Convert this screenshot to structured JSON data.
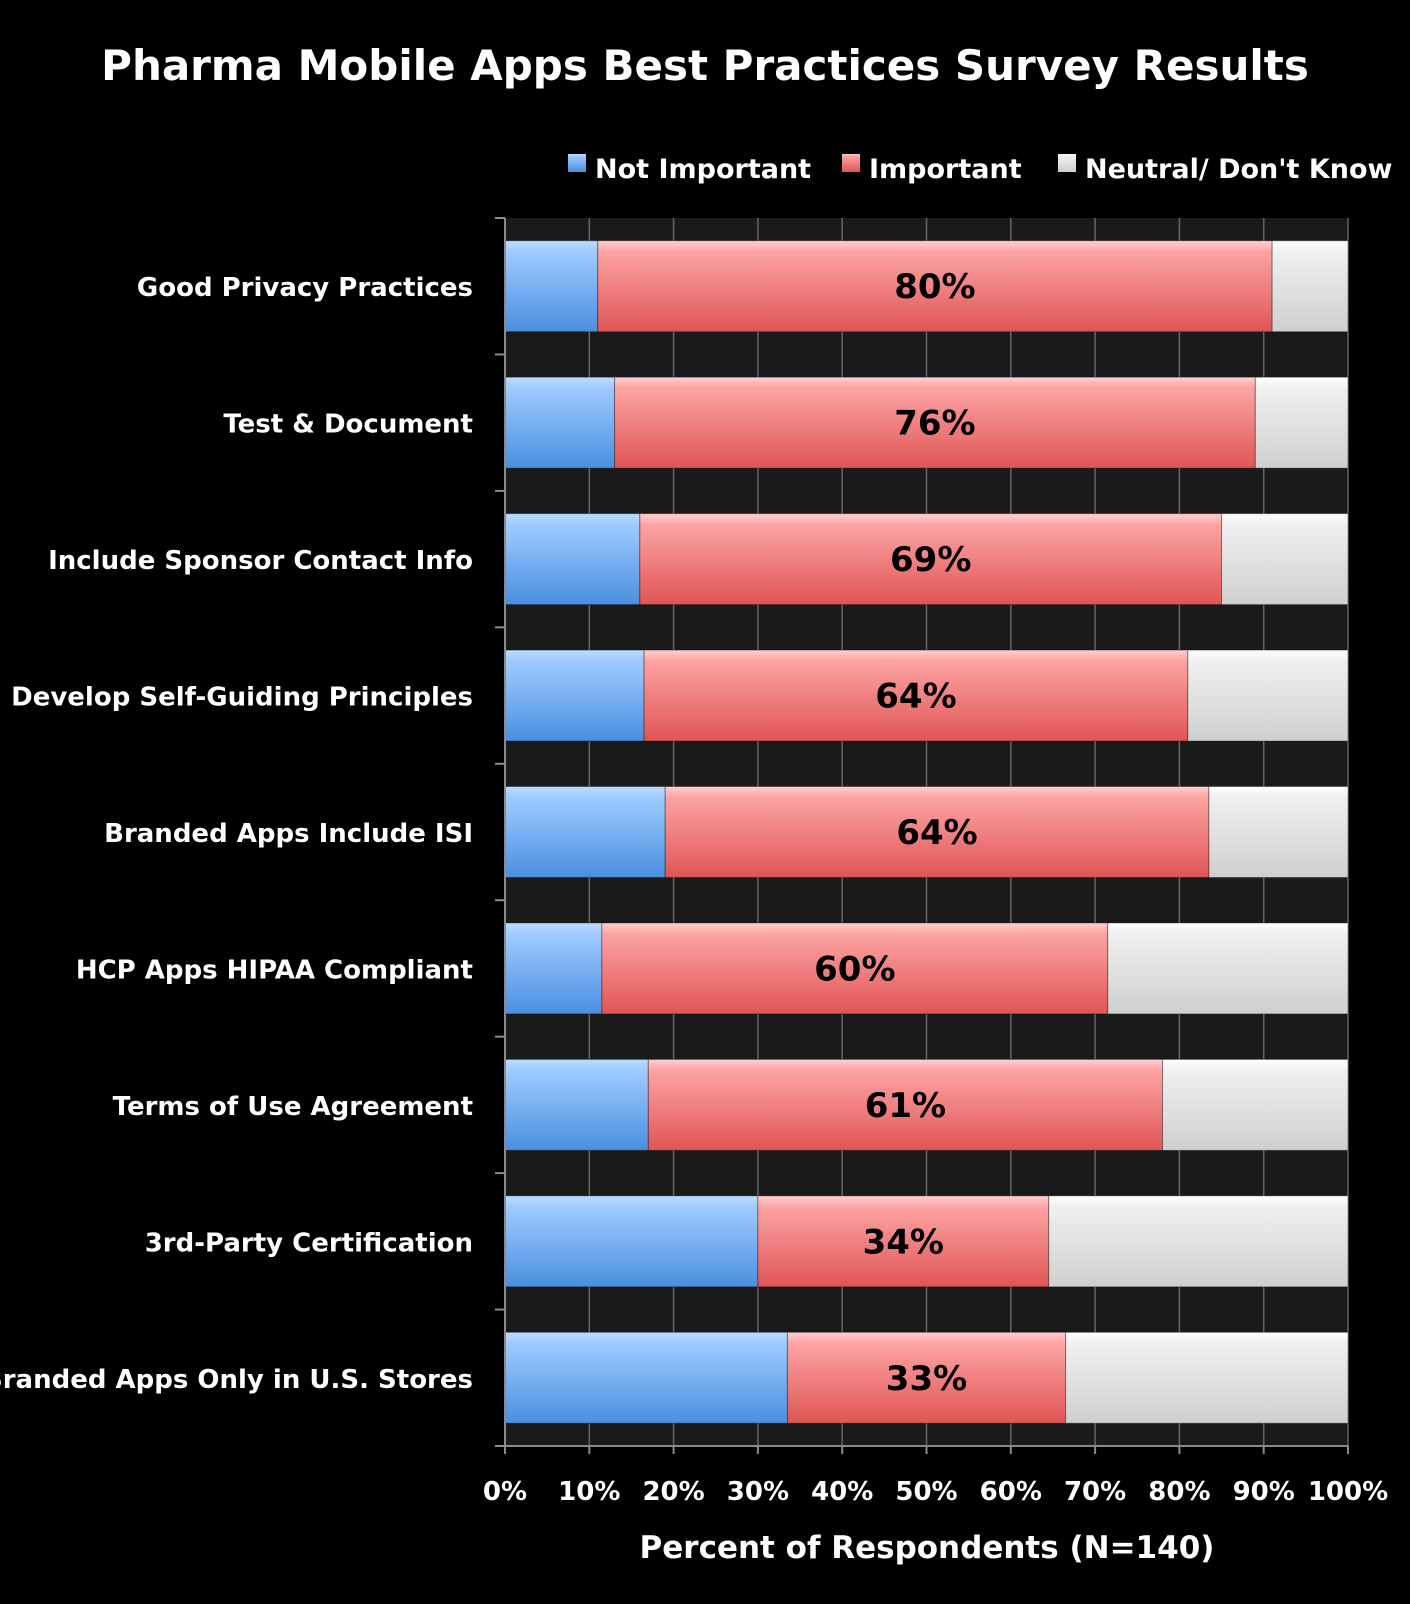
{
  "chart_data": {
    "type": "bar",
    "orientation": "horizontal",
    "stacked": "percent",
    "title": "Pharma Mobile Apps Best Practices Survey Results",
    "xlabel": "Percent of Respondents (N=140)",
    "ylabel": "",
    "xlim": [
      0,
      100
    ],
    "x_ticks": [
      "0%",
      "10%",
      "20%",
      "30%",
      "40%",
      "50%",
      "60%",
      "70%",
      "80%",
      "90%",
      "100%"
    ],
    "grid": true,
    "legend_position": "top-right",
    "categories": [
      "Good Privacy Practices",
      "Test & Document",
      "Include Sponsor Contact Info",
      "Develop Self-Guiding Principles",
      "Branded Apps Include ISI",
      "HCP Apps HIPAA Compliant",
      "Terms of Use Agreement",
      "3rd-Party Certification",
      "Branded Apps Only in U.S. Stores"
    ],
    "series": [
      {
        "name": "Not Important",
        "color": "#5b9bd5",
        "values": [
          11,
          13,
          16,
          16.5,
          19,
          11.5,
          17,
          30,
          33.5
        ]
      },
      {
        "name": "Important",
        "color": "#e05c5c",
        "values": [
          80,
          76,
          69,
          64.5,
          64.5,
          60,
          61,
          34.5,
          33
        ]
      },
      {
        "name": "Neutral/ Don't Know",
        "color": "#d9d9d9",
        "values": [
          9,
          11,
          15,
          19,
          16.5,
          28.5,
          22,
          35.5,
          33.5
        ]
      }
    ],
    "data_labels": [
      "80%",
      "76%",
      "69%",
      "64%",
      "64%",
      "60%",
      "61%",
      "34%",
      "33%"
    ]
  }
}
